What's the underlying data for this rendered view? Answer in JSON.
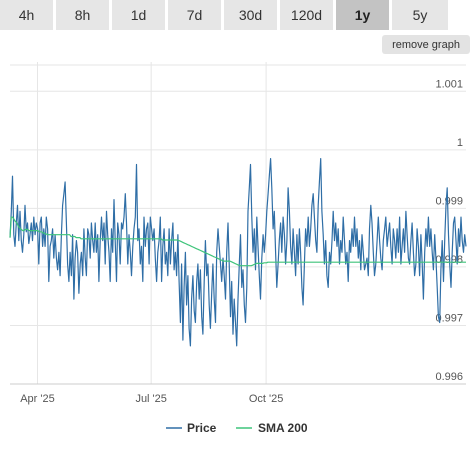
{
  "tabs": [
    {
      "label": "4h",
      "active": false
    },
    {
      "label": "8h",
      "active": false
    },
    {
      "label": "1d",
      "active": false
    },
    {
      "label": "7d",
      "active": false
    },
    {
      "label": "30d",
      "active": false
    },
    {
      "label": "120d",
      "active": false
    },
    {
      "label": "1y",
      "active": true
    },
    {
      "label": "5y",
      "active": false
    }
  ],
  "remove_graph_label": "remove graph",
  "chart_data": {
    "type": "line",
    "ylim": [
      0.996,
      1.0015
    ],
    "yticks": [
      "0.996",
      "0.997",
      "0.998",
      "0.999",
      "1",
      "1.001"
    ],
    "x_start_day": 0,
    "x_end_day": 365,
    "xticks": [
      {
        "label": "Apr '25",
        "day": 22
      },
      {
        "label": "Jul '25",
        "day": 113
      },
      {
        "label": "Oct '25",
        "day": 205
      }
    ],
    "grid": true,
    "legend_position": "bottom",
    "series": [
      {
        "name": "Price",
        "color": "#2f6ea6",
        "values": [
          0.9985,
          0.99895,
          0.99955,
          0.99855,
          0.99835,
          0.99875,
          0.99905,
          0.99845,
          0.99895,
          0.99845,
          0.99825,
          0.99855,
          0.99905,
          0.9986,
          0.99875,
          0.9984,
          0.99855,
          0.99875,
          0.99845,
          0.99885,
          0.99855,
          0.99875,
          0.99865,
          0.99805,
          0.99875,
          0.99885,
          0.99835,
          0.99865,
          0.99835,
          0.99885,
          0.99865,
          0.99775,
          0.99835,
          0.99845,
          0.99865,
          0.99815,
          0.99855,
          0.99815,
          0.99795,
          0.99825,
          0.99785,
          0.99855,
          0.99905,
          0.99925,
          0.99945,
          0.99875,
          0.99805,
          0.99775,
          0.99825,
          0.99785,
          0.99855,
          0.99745,
          0.99815,
          0.99845,
          0.99825,
          0.99755,
          0.99805,
          0.99825,
          0.99785,
          0.99865,
          0.99815,
          0.99785,
          0.99865,
          0.99855,
          0.99815,
          0.99875,
          0.99845,
          0.99825,
          0.99875,
          0.99825,
          0.99855,
          0.99775,
          0.99845,
          0.99885,
          0.99845,
          0.99875,
          0.99805,
          0.99895,
          0.99855,
          0.99825,
          0.99775,
          0.99865,
          0.99825,
          0.99915,
          0.99845,
          0.99775,
          0.99875,
          0.99855,
          0.99805,
          0.99875,
          0.99865,
          0.99885,
          0.99925,
          0.99875,
          0.99805,
          0.99855,
          0.99825,
          0.99785,
          0.99835,
          0.99865,
          0.99885,
          0.99975,
          0.99845,
          0.99865,
          0.99805,
          0.99835,
          0.99775,
          0.99885,
          0.99835,
          0.99865,
          0.99875,
          0.99805,
          0.99885,
          0.99865,
          0.99845,
          0.99865,
          0.99815,
          0.99775,
          0.99825,
          0.99845,
          0.99885,
          0.99775,
          0.99835,
          0.99865,
          0.99805,
          0.99825,
          0.99785,
          0.99865,
          0.99805,
          0.99845,
          0.99875,
          0.99795,
          0.99825,
          0.99785,
          0.99855,
          0.99775,
          0.99705,
          0.99805,
          0.99675,
          0.99765,
          0.99825,
          0.99735,
          0.99785,
          0.99695,
          0.99665,
          0.99745,
          0.99785,
          0.99725,
          0.99705,
          0.99775,
          0.99805,
          0.99745,
          0.99795,
          0.99715,
          0.99685,
          0.99775,
          0.99845,
          0.99785,
          0.99805,
          0.99735,
          0.99695,
          0.99755,
          0.99805,
          0.99745,
          0.99705,
          0.99825,
          0.99865,
          0.99835,
          0.99805,
          0.99775,
          0.99815,
          0.99785,
          0.99745,
          0.99825,
          0.99875,
          0.99805,
          0.99715,
          0.99775,
          0.99685,
          0.99745,
          0.99705,
          0.99665,
          0.99745,
          0.99805,
          0.99855,
          0.99765,
          0.99795,
          0.99735,
          0.99705,
          0.99765,
          0.99895,
          0.99935,
          0.99975,
          0.99885,
          0.99825,
          0.99865,
          0.99795,
          0.99885,
          0.99835,
          0.99785,
          0.99745,
          0.99815,
          0.99855,
          0.99825,
          0.99855,
          0.99895,
          0.99925,
          0.99955,
          0.99985,
          0.99935,
          0.99865,
          0.99895,
          0.99825,
          0.99765,
          0.99805,
          0.99845,
          0.99875,
          0.99825,
          0.99885,
          0.99855,
          0.99805,
          0.99845,
          0.99935,
          0.99895,
          0.99835,
          0.99805,
          0.99865,
          0.99825,
          0.99785,
          0.99855,
          0.99805,
          0.99865,
          0.99825,
          0.99765,
          0.99735,
          0.99805,
          0.99865,
          0.99835,
          0.99885,
          0.99835,
          0.99865,
          0.99905,
          0.99925,
          0.99885,
          0.99845,
          0.99825,
          0.99905,
          0.99945,
          0.99985,
          0.99895,
          0.99855,
          0.99805,
          0.99845,
          0.99785,
          0.99765,
          0.99825,
          0.99805,
          0.99845,
          0.99895,
          0.99845,
          0.99875,
          0.99835,
          0.99865,
          0.99805,
          0.99845,
          0.99825,
          0.99885,
          0.99845,
          0.99805,
          0.99825,
          0.99775,
          0.99845,
          0.99825,
          0.99865,
          0.99835,
          0.99885,
          0.99835,
          0.99865,
          0.99815,
          0.99845,
          0.99795,
          0.99855,
          0.99825,
          0.99795,
          0.99805,
          0.99815,
          0.99785,
          0.99865,
          0.99905,
          0.99875,
          0.99825,
          0.99785,
          0.99805,
          0.99845,
          0.99885,
          0.99845,
          0.99815,
          0.99795,
          0.99845,
          0.99865,
          0.99885,
          0.99835,
          0.99855,
          0.99875,
          0.99835,
          0.99805,
          0.99865,
          0.99845,
          0.99815,
          0.99865,
          0.99825,
          0.99885,
          0.99805,
          0.99835,
          0.99865,
          0.99825,
          0.99895,
          0.99855,
          0.99815,
          0.99805,
          0.99845,
          0.99875,
          0.99825,
          0.99785,
          0.99805,
          0.99865,
          0.99835,
          0.99785,
          0.99855,
          0.99805,
          0.99745,
          0.99825,
          0.99865,
          0.99835,
          0.99885,
          0.99835,
          0.99865,
          0.99825,
          0.99795,
          0.99855,
          0.99815,
          0.99765,
          0.99715,
          0.99705,
          0.99795,
          0.99845,
          0.99775,
          0.99845,
          0.99905,
          0.99935,
          0.99855,
          0.99805,
          0.99765,
          0.99825,
          0.99875,
          0.99885,
          0.99845,
          0.99805,
          0.99865,
          0.99835,
          0.99885,
          0.99845,
          0.99825,
          0.99855,
          0.99835
        ]
      },
      {
        "name": "SMA 200",
        "color": "#3ec47a",
        "values": [
          0.9985,
          0.99885,
          0.99885,
          0.99882,
          0.99878,
          0.99876,
          0.99872,
          0.99868,
          0.99866,
          0.99864,
          0.99862,
          0.99862,
          0.99864,
          0.99864,
          0.99864,
          0.99862,
          0.99862,
          0.99862,
          0.99862,
          0.99862,
          0.99862,
          0.99862,
          0.99862,
          0.9986,
          0.9986,
          0.9986,
          0.99858,
          0.99858,
          0.99856,
          0.99856,
          0.99855,
          0.99855,
          0.99855,
          0.99855,
          0.99855,
          0.99855,
          0.99855,
          0.99855,
          0.99855,
          0.99855,
          0.99855,
          0.99855,
          0.99855,
          0.99855,
          0.99855,
          0.99855,
          0.99855,
          0.99855,
          0.99852,
          0.99852,
          0.99852,
          0.99852,
          0.9985,
          0.9985,
          0.9985,
          0.9985,
          0.99848,
          0.99848,
          0.99848,
          0.99848,
          0.99848,
          0.99848,
          0.99848,
          0.99848,
          0.99848,
          0.99848,
          0.99848,
          0.99848,
          0.99848,
          0.99848,
          0.99848,
          0.99848,
          0.99848,
          0.99848,
          0.99848,
          0.99848,
          0.99848,
          0.99848,
          0.99848,
          0.99848,
          0.99848,
          0.99848,
          0.99848,
          0.99848,
          0.99848,
          0.99848,
          0.99848,
          0.99848,
          0.99848,
          0.99848,
          0.99848,
          0.99848,
          0.99848,
          0.99848,
          0.99848,
          0.99848,
          0.99848,
          0.99848,
          0.99848,
          0.99848,
          0.99848,
          0.99848,
          0.99848,
          0.99848,
          0.99848,
          0.99848,
          0.99848,
          0.99848,
          0.99848,
          0.99848,
          0.99848,
          0.99848,
          0.99848,
          0.99848,
          0.99848,
          0.99848,
          0.99848,
          0.99848,
          0.99848,
          0.99848,
          0.99846,
          0.99846,
          0.99846,
          0.99846,
          0.99846,
          0.99846,
          0.99846,
          0.99846,
          0.99846,
          0.99846,
          0.99846,
          0.99846,
          0.99846,
          0.99845,
          0.99844,
          0.99843,
          0.99842,
          0.99841,
          0.9984,
          0.99839,
          0.99838,
          0.99837,
          0.99836,
          0.99835,
          0.99834,
          0.99833,
          0.99832,
          0.99831,
          0.9983,
          0.99829,
          0.99828,
          0.99827,
          0.99826,
          0.99825,
          0.99824,
          0.99823,
          0.99822,
          0.99821,
          0.9982,
          0.99819,
          0.99818,
          0.99817,
          0.99816,
          0.99815,
          0.99814,
          0.99813,
          0.99812,
          0.99811,
          0.9981,
          0.9981,
          0.9981,
          0.9981,
          0.9981,
          0.9981,
          0.99809,
          0.99808,
          0.99807,
          0.99806,
          0.99805,
          0.99804,
          0.99803,
          0.99802,
          0.99802,
          0.99802,
          0.99802,
          0.99802,
          0.99802,
          0.99802,
          0.99802,
          0.99802,
          0.99802,
          0.99803,
          0.99804,
          0.99805,
          0.99806,
          0.99806,
          0.99806,
          0.99806,
          0.99806,
          0.99806,
          0.99807,
          0.99807,
          0.99807,
          0.99808,
          0.99808,
          0.99808,
          0.99808,
          0.99808,
          0.99808,
          0.99808,
          0.99808,
          0.99808,
          0.99808,
          0.99808,
          0.99808,
          0.99808,
          0.99808,
          0.99808,
          0.99808,
          0.99808,
          0.99808,
          0.99808,
          0.99808,
          0.99808,
          0.99808,
          0.99808,
          0.99808,
          0.99808,
          0.99808,
          0.99808,
          0.99808,
          0.99808,
          0.99808,
          0.99808,
          0.99808,
          0.99808,
          0.99808,
          0.99808,
          0.99808,
          0.99808,
          0.99808,
          0.99808,
          0.99808,
          0.99808,
          0.99808,
          0.99808,
          0.99808,
          0.99808,
          0.99808,
          0.99808,
          0.99808,
          0.99808,
          0.99808,
          0.99808,
          0.99808,
          0.99808,
          0.99808,
          0.99808,
          0.99808,
          0.99808,
          0.99808,
          0.99808,
          0.99808,
          0.99808,
          0.99808,
          0.99808,
          0.99808,
          0.99808,
          0.99808,
          0.99808,
          0.99808,
          0.99808,
          0.99808,
          0.99808,
          0.99808,
          0.99808,
          0.99808,
          0.99808,
          0.99808,
          0.99808,
          0.99808,
          0.99808,
          0.99808,
          0.99808,
          0.99808,
          0.99808,
          0.99808,
          0.99808,
          0.99808,
          0.99808,
          0.99808,
          0.99808,
          0.99808,
          0.99808,
          0.99808,
          0.99808,
          0.99808,
          0.99808,
          0.99808,
          0.99808,
          0.99808,
          0.99808,
          0.99808,
          0.99808,
          0.99808,
          0.99808,
          0.99808,
          0.99808,
          0.99808,
          0.99808,
          0.99808,
          0.99808,
          0.99808,
          0.99808,
          0.99808,
          0.99808,
          0.99808,
          0.99808,
          0.99808,
          0.99808,
          0.99808,
          0.99808,
          0.99808,
          0.99808,
          0.99808,
          0.99808,
          0.99808,
          0.99808,
          0.99808,
          0.99808,
          0.99808,
          0.99808,
          0.99808,
          0.99808,
          0.99808,
          0.99808,
          0.99808,
          0.99808,
          0.99808,
          0.99808,
          0.99808,
          0.99808,
          0.99808,
          0.99808,
          0.99808,
          0.99808,
          0.99808,
          0.99808,
          0.99808,
          0.99808,
          0.99808,
          0.99808,
          0.99808,
          0.99808,
          0.99808,
          0.99808,
          0.99808,
          0.99808,
          0.99808,
          0.99808
        ]
      }
    ]
  }
}
